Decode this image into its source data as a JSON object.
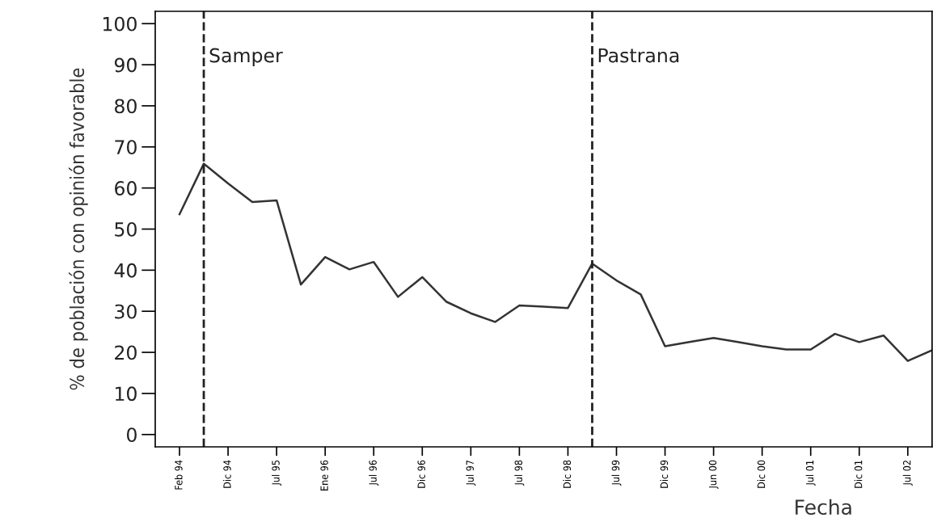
{
  "chart_data": {
    "type": "line",
    "xlabel": "Fecha",
    "ylabel": "% de población con opinión favorable",
    "categories": [
      "Feb 94",
      null,
      "Dic 94",
      null,
      "Jul 95",
      null,
      "Ene 96",
      null,
      "Jul 96",
      null,
      "Dic 96",
      null,
      "Jul 97",
      null,
      "Jul 98",
      null,
      "Dic 98",
      null,
      "Jul 99",
      null,
      "Dic 99",
      null,
      "Jun 00",
      null,
      "Dic 00",
      null,
      "Jul 01",
      null,
      "Dic 01",
      null,
      "Jul 02",
      null
    ],
    "series": [
      {
        "color": "#333333",
        "values": [
          53.6,
          65.9,
          61.1,
          56.6,
          57.0,
          36.5,
          43.2,
          40.2,
          42.0,
          33.5,
          38.3,
          32.3,
          29.5,
          27.4,
          31.4,
          31.1,
          30.8,
          41.6,
          37.5,
          34.1,
          21.5,
          22.5,
          23.5,
          22.5,
          21.5,
          20.7,
          20.7,
          24.5,
          22.5,
          24.1,
          17.9,
          20.5
        ]
      }
    ],
    "ylim": [
      -3,
      103
    ],
    "yticks": [
      0,
      10,
      20,
      30,
      40,
      50,
      60,
      70,
      80,
      90,
      100
    ],
    "annotations": [
      "Samper",
      "Pastrana"
    ],
    "legend": false,
    "marker": "none",
    "line_style": "solid"
  }
}
